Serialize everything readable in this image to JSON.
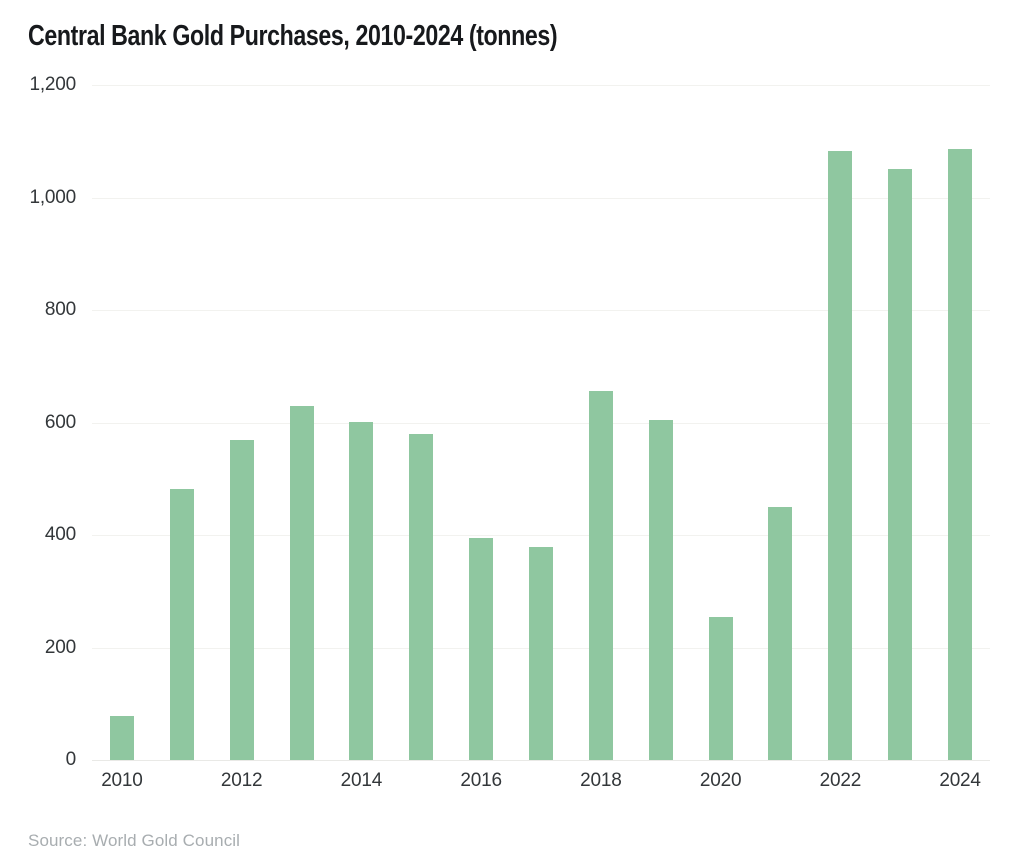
{
  "page": {
    "title": "Central Bank Gold Purchases, 2010-2024 (tonnes)",
    "source": "Source: World Gold Council"
  },
  "colors": {
    "background": "#ffffff",
    "bar": "#8fc7a0",
    "title_text": "#17191c",
    "axis_text": "#33373a",
    "source_text": "#a8adb0",
    "gridline": "#f2f2ef",
    "baseline": "#e9e9e6"
  },
  "chart_data": {
    "type": "bar",
    "title": "Central Bank Gold Purchases, 2010-2024 (tonnes)",
    "unit": "tonnes",
    "categories": [
      "2010",
      "2011",
      "2012",
      "2013",
      "2014",
      "2015",
      "2016",
      "2017",
      "2018",
      "2019",
      "2020",
      "2021",
      "2022",
      "2023",
      "2024"
    ],
    "values": [
      79,
      481,
      569,
      629,
      601,
      580,
      395,
      379,
      656,
      605,
      255,
      450,
      1082,
      1051,
      1086
    ],
    "ylim": [
      0,
      1200
    ],
    "yticks": [
      {
        "label": "1,200",
        "value": 1200
      },
      {
        "label": "1,000",
        "value": 1000
      },
      {
        "label": "800",
        "value": 800
      },
      {
        "label": "600",
        "value": 600
      },
      {
        "label": "400",
        "value": 400
      },
      {
        "label": "200",
        "value": 200
      },
      {
        "label": "0",
        "value": 0
      }
    ],
    "xtick_labels_shown": [
      "2010",
      "2012",
      "2014",
      "2016",
      "2018",
      "2020",
      "2022",
      "2024"
    ],
    "grid": "horizontal",
    "legend": "none",
    "bar_color": "#8fc7a0",
    "source": "Source: World Gold Council"
  }
}
